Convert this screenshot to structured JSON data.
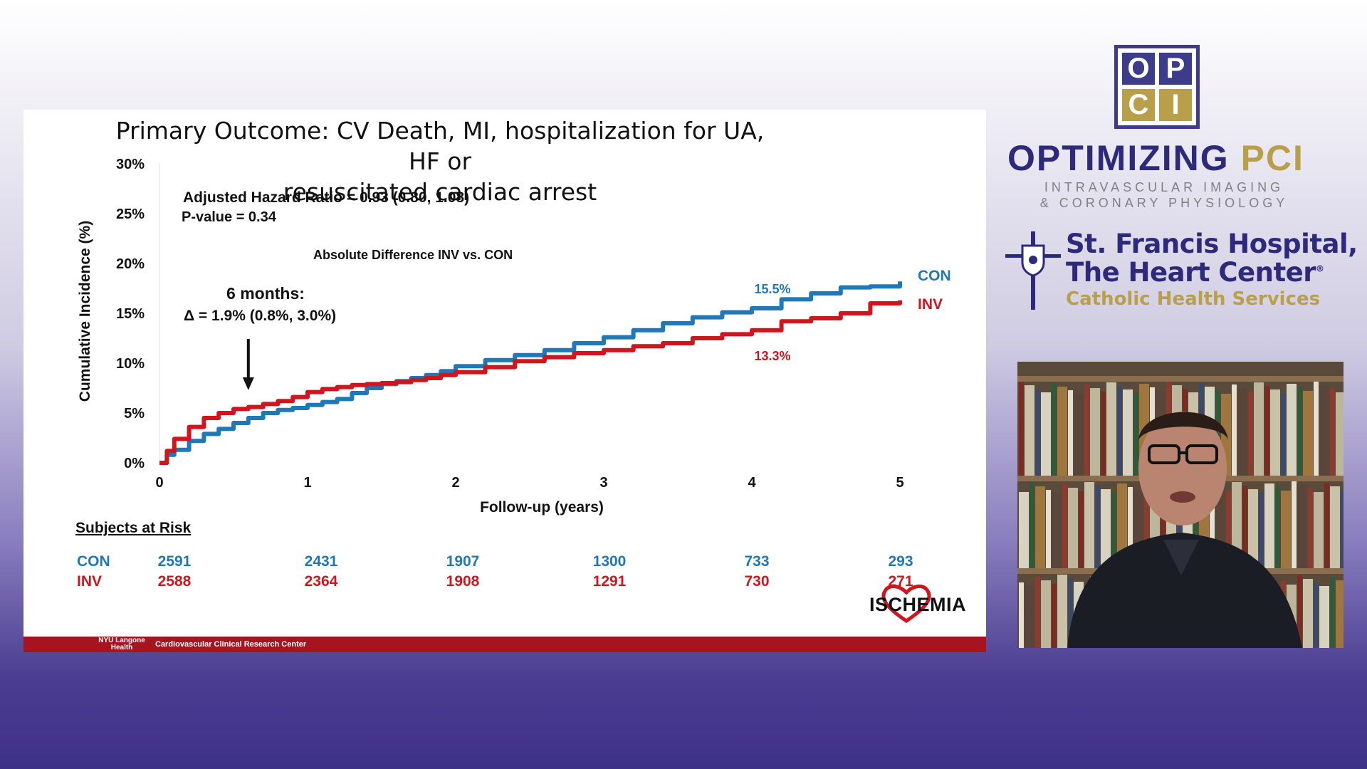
{
  "slide": {
    "title_line1": "Primary Outcome: CV Death, MI, hospitalization for UA, HF or",
    "title_line2": "resuscitated cardiac arrest",
    "footer_logo_line1": "NYU Langone",
    "footer_logo_line2": "Health",
    "footer_text": "Cardiovascular Clinical Research Center",
    "brand": "ISCHEMIA"
  },
  "chart_data": {
    "type": "line",
    "xlabel": "Follow-up (years)",
    "ylabel": "Cumulative Incidence (%)",
    "xlim": [
      0,
      5
    ],
    "ylim": [
      0,
      30
    ],
    "x_ticks": [
      "0",
      "1",
      "2",
      "3",
      "4",
      "5"
    ],
    "y_ticks": [
      "0%",
      "5%",
      "10%",
      "15%",
      "20%",
      "25%",
      "30%"
    ],
    "grid": false,
    "annotations": {
      "hr": "Adjusted Hazard Ratio = 0.93 (0.80, 1.08)",
      "pvalue": "P-value = 0.34",
      "absdiff": "Absolute Difference INV vs. CON",
      "six_months": "6 months:",
      "delta": "Δ = 1.9% (0.8%, 3.0%)",
      "con_end": "15.5%",
      "inv_end": "13.3%",
      "arrow_x": 0.6
    },
    "series": [
      {
        "name": "CON",
        "color": "#1f78b8",
        "x": [
          0,
          0.05,
          0.1,
          0.2,
          0.3,
          0.4,
          0.5,
          0.6,
          0.7,
          0.8,
          0.9,
          1.0,
          1.1,
          1.2,
          1.3,
          1.4,
          1.5,
          1.6,
          1.7,
          1.8,
          1.9,
          2.0,
          2.2,
          2.4,
          2.6,
          2.8,
          3.0,
          3.2,
          3.4,
          3.6,
          3.8,
          4.0,
          4.2,
          4.4,
          4.6,
          4.8,
          5.0
        ],
        "y": [
          0,
          0.8,
          1.3,
          2.2,
          2.9,
          3.4,
          4.0,
          4.5,
          5.0,
          5.3,
          5.5,
          5.8,
          6.1,
          6.4,
          7.0,
          7.5,
          7.9,
          8.2,
          8.5,
          8.8,
          9.2,
          9.7,
          10.3,
          10.8,
          11.3,
          12.0,
          12.6,
          13.3,
          14.0,
          14.6,
          15.1,
          15.5,
          16.4,
          17.0,
          17.6,
          17.7,
          18.2
        ]
      },
      {
        "name": "INV",
        "color": "#d0151f",
        "x": [
          0,
          0.05,
          0.1,
          0.2,
          0.3,
          0.4,
          0.5,
          0.6,
          0.7,
          0.8,
          0.9,
          1.0,
          1.1,
          1.2,
          1.3,
          1.4,
          1.5,
          1.6,
          1.7,
          1.8,
          1.9,
          2.0,
          2.2,
          2.4,
          2.6,
          2.8,
          3.0,
          3.2,
          3.4,
          3.6,
          3.8,
          4.0,
          4.2,
          4.4,
          4.6,
          4.8,
          5.0
        ],
        "y": [
          0,
          1.2,
          2.4,
          3.6,
          4.5,
          5.0,
          5.4,
          5.6,
          5.9,
          6.2,
          6.6,
          7.1,
          7.4,
          7.6,
          7.8,
          7.9,
          8.0,
          8.1,
          8.3,
          8.5,
          8.8,
          9.1,
          9.6,
          10.2,
          10.6,
          11.0,
          11.3,
          11.7,
          12.0,
          12.5,
          12.9,
          13.3,
          14.2,
          14.5,
          15.0,
          16.0,
          16.3
        ]
      }
    ]
  },
  "risk_table": {
    "title": "Subjects at Risk",
    "rows": [
      {
        "label": "CON",
        "color": "#1f78b8",
        "values": [
          "2591",
          "2431",
          "1907",
          "1300",
          "733",
          "293"
        ]
      },
      {
        "label": "INV",
        "color": "#d0151f",
        "values": [
          "2588",
          "2364",
          "1908",
          "1291",
          "730",
          "271"
        ]
      }
    ]
  },
  "sidebar": {
    "opci_letters": [
      "O",
      "P",
      "C",
      "I"
    ],
    "opci_colors": [
      "#3d3c8a",
      "#3d3c8a",
      "#b8a04b",
      "#b8a04b"
    ],
    "title_part1": "OPTIMIZING",
    "title_part2": "PCI",
    "subtitle1": "INTRAVASCULAR IMAGING",
    "subtitle2": "& CORONARY PHYSIOLOGY",
    "hospital_line1": "St. Francis Hospital,",
    "hospital_line2": "The Heart Center",
    "registered": "®",
    "hospital_line3": "Catholic Health Services"
  }
}
